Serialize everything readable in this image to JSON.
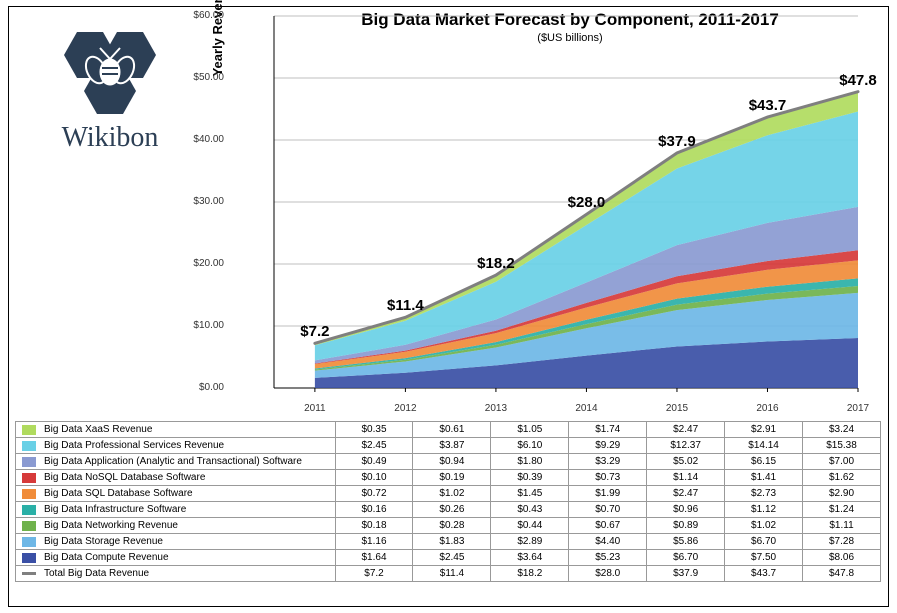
{
  "logo_text": "Wikibon",
  "title": "Big Data Market Forecast by Component, 2011-2017",
  "subtitle": "($US billions)",
  "ylabel": "Yearly Revenue ($US billions)",
  "chart": {
    "type": "stacked-area",
    "categories": [
      "2011",
      "2012",
      "2013",
      "2014",
      "2015",
      "2016",
      "2017"
    ],
    "ylim": [
      0,
      60
    ],
    "ytick_step": 10,
    "ytick_labels": [
      "$0.00",
      "$10.00",
      "$20.00",
      "$30.00",
      "$40.00",
      "$50.00",
      "$60.00"
    ],
    "background": "#ffffff",
    "grid_color": "#bfbfbf",
    "total_line_color": "#7f7f7f",
    "total_line_width": 3,
    "series": [
      {
        "key": "compute",
        "label": "Big Data Compute Revenue",
        "color": "#3a4fa5",
        "values": [
          1.64,
          2.45,
          3.64,
          5.23,
          6.7,
          7.5,
          8.06
        ]
      },
      {
        "key": "storage",
        "label": "Big Data Storage Revenue",
        "color": "#6eb7e6",
        "values": [
          1.16,
          1.83,
          2.89,
          4.4,
          5.86,
          6.7,
          7.28
        ]
      },
      {
        "key": "networking",
        "label": "Big Data Networking Revenue",
        "color": "#6fb24c",
        "values": [
          0.18,
          0.28,
          0.44,
          0.67,
          0.89,
          1.02,
          1.11
        ]
      },
      {
        "key": "infra",
        "label": "Big Data Infrastructure Software",
        "color": "#2ab0a7",
        "values": [
          0.16,
          0.26,
          0.43,
          0.7,
          0.96,
          1.12,
          1.24
        ]
      },
      {
        "key": "sql",
        "label": "Big Data SQL Database Software",
        "color": "#f08c3a",
        "values": [
          0.72,
          1.02,
          1.45,
          1.99,
          2.47,
          2.73,
          2.9
        ]
      },
      {
        "key": "nosql",
        "label": "Big Data NoSQL Database Software",
        "color": "#d63a3a",
        "values": [
          0.1,
          0.19,
          0.39,
          0.73,
          1.14,
          1.41,
          1.62
        ]
      },
      {
        "key": "app",
        "label": "Big Data Application (Analytic and Transactional) Software",
        "color": "#8a9ad1",
        "values": [
          0.49,
          0.94,
          1.8,
          3.29,
          5.02,
          6.15,
          7.0
        ]
      },
      {
        "key": "prof",
        "label": "Big Data Professional Services Revenue",
        "color": "#69d0e6",
        "values": [
          2.45,
          3.87,
          6.1,
          9.29,
          12.37,
          14.14,
          15.38
        ]
      },
      {
        "key": "xaas",
        "label": "Big Data XaaS Revenue",
        "color": "#b0db5e",
        "values": [
          0.35,
          0.61,
          1.05,
          1.74,
          2.47,
          2.91,
          3.24
        ]
      }
    ],
    "total": {
      "label": "Total Big Data Revenue",
      "color": "#7f7f7f",
      "values": [
        7.2,
        11.4,
        18.2,
        28.0,
        37.9,
        43.7,
        47.8
      ],
      "display": [
        "$7.2",
        "$11.4",
        "$18.2",
        "$28.0",
        "$37.9",
        "$43.7",
        "$47.8"
      ]
    }
  },
  "table": {
    "rows": [
      {
        "swatch": "#b0db5e",
        "label": "Big Data XaaS Revenue",
        "cells": [
          "$0.35",
          "$0.61",
          "$1.05",
          "$1.74",
          "$2.47",
          "$2.91",
          "$3.24"
        ]
      },
      {
        "swatch": "#69d0e6",
        "label": "Big Data Professional Services Revenue",
        "cells": [
          "$2.45",
          "$3.87",
          "$6.10",
          "$9.29",
          "$12.37",
          "$14.14",
          "$15.38"
        ]
      },
      {
        "swatch": "#8a9ad1",
        "label": "Big Data Application (Analytic and Transactional) Software",
        "cells": [
          "$0.49",
          "$0.94",
          "$1.80",
          "$3.29",
          "$5.02",
          "$6.15",
          "$7.00"
        ]
      },
      {
        "swatch": "#d63a3a",
        "label": "Big Data NoSQL Database Software",
        "cells": [
          "$0.10",
          "$0.19",
          "$0.39",
          "$0.73",
          "$1.14",
          "$1.41",
          "$1.62"
        ]
      },
      {
        "swatch": "#f08c3a",
        "label": "Big Data SQL Database Software",
        "cells": [
          "$0.72",
          "$1.02",
          "$1.45",
          "$1.99",
          "$2.47",
          "$2.73",
          "$2.90"
        ]
      },
      {
        "swatch": "#2ab0a7",
        "label": "Big Data Infrastructure Software",
        "cells": [
          "$0.16",
          "$0.26",
          "$0.43",
          "$0.70",
          "$0.96",
          "$1.12",
          "$1.24"
        ]
      },
      {
        "swatch": "#6fb24c",
        "label": "Big Data Networking Revenue",
        "cells": [
          "$0.18",
          "$0.28",
          "$0.44",
          "$0.67",
          "$0.89",
          "$1.02",
          "$1.11"
        ]
      },
      {
        "swatch": "#6eb7e6",
        "label": "Big Data Storage Revenue",
        "cells": [
          "$1.16",
          "$1.83",
          "$2.89",
          "$4.40",
          "$5.86",
          "$6.70",
          "$7.28"
        ]
      },
      {
        "swatch": "#3a4fa5",
        "label": "Big Data Compute Revenue",
        "cells": [
          "$1.64",
          "$2.45",
          "$3.64",
          "$5.23",
          "$6.70",
          "$7.50",
          "$8.06"
        ]
      },
      {
        "swatch": "#7f7f7f",
        "label": "Total Big Data Revenue",
        "cells": [
          "$7.2",
          "$11.4",
          "$18.2",
          "$28.0",
          "$37.9",
          "$43.7",
          "$47.8"
        ],
        "is_line": true
      }
    ]
  }
}
